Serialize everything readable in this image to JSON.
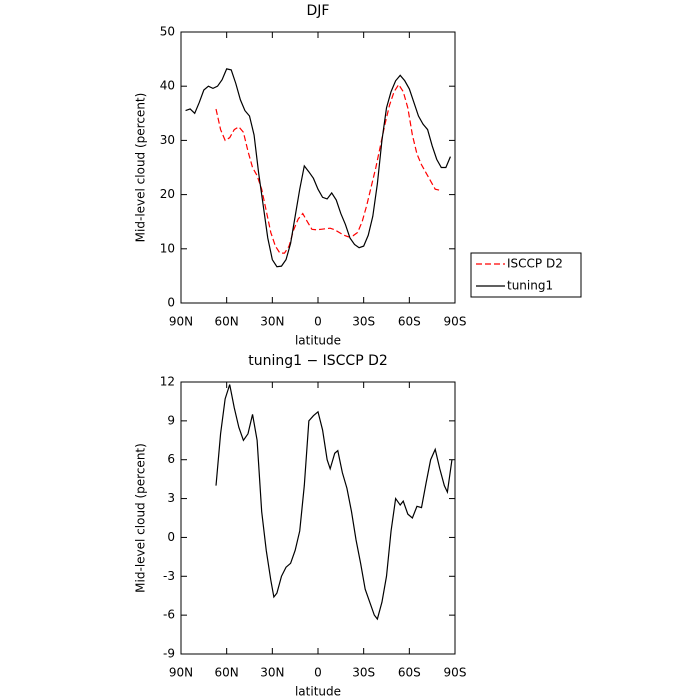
{
  "chart_data": [
    {
      "type": "line",
      "title": "DJF",
      "xlabel": "latitude",
      "ylabel": "Mid-level cloud (percent)",
      "xlim": [
        90,
        -90
      ],
      "xticks": [
        {
          "value": 90,
          "label": "90N"
        },
        {
          "value": 60,
          "label": "60N"
        },
        {
          "value": 30,
          "label": "30N"
        },
        0,
        {
          "value": -30,
          "label": "30S"
        },
        {
          "value": -60,
          "label": "60S"
        },
        {
          "value": -90,
          "label": "90S"
        }
      ],
      "ylim": [
        0,
        50
      ],
      "yticks": [
        0,
        10,
        20,
        30,
        40,
        50
      ],
      "legend": "outside-right",
      "series": [
        {
          "name": "ISCCP D2",
          "color": "#ff0000",
          "line_style": "dashed",
          "x": [
            67,
            64,
            61,
            58,
            55,
            52,
            49,
            46,
            43,
            40,
            37,
            34,
            31,
            28,
            25,
            22,
            19,
            16,
            13,
            10,
            7,
            4,
            1,
            -2,
            -5,
            -8,
            -11,
            -14,
            -17,
            -20,
            -23,
            -26,
            -29,
            -32,
            -35,
            -38,
            -41,
            -44,
            -47,
            -50,
            -53,
            -56,
            -59,
            -62,
            -65,
            -68,
            -71,
            -74,
            -77,
            -80
          ],
          "values": [
            35.8,
            32,
            30,
            30.5,
            32,
            32.5,
            31.5,
            28,
            25,
            23.5,
            21,
            17,
            13,
            10.5,
            9.2,
            9.2,
            10.5,
            13.5,
            15.5,
            16.5,
            15,
            13.6,
            13.5,
            13.6,
            13.7,
            13.8,
            13.5,
            13,
            12.5,
            12.2,
            12.4,
            13,
            15,
            18,
            21.5,
            25,
            29,
            33,
            36.5,
            39,
            40.3,
            39,
            36,
            31,
            27.5,
            25.5,
            24,
            22.5,
            21,
            20.8
          ]
        },
        {
          "name": "tuning1",
          "color": "#000000",
          "line_style": "solid",
          "x": [
            87,
            84,
            81,
            78,
            75,
            72,
            69,
            66,
            63,
            60,
            57,
            54,
            51,
            48,
            45,
            42,
            39,
            36,
            33,
            30,
            27,
            24,
            21,
            18,
            15,
            12,
            9,
            6,
            3,
            0,
            -3,
            -6,
            -9,
            -12,
            -15,
            -18,
            -21,
            -24,
            -27,
            -30,
            -33,
            -36,
            -39,
            -42,
            -45,
            -48,
            -51,
            -54,
            -57,
            -60,
            -63,
            -66,
            -69,
            -72,
            -75,
            -78,
            -81,
            -84,
            -87
          ],
          "values": [
            35.5,
            35.8,
            35,
            37,
            39.3,
            40,
            39.6,
            40,
            41.2,
            43.2,
            43,
            40.5,
            37.5,
            35.5,
            34.5,
            31,
            24,
            18,
            12,
            8,
            6.7,
            6.8,
            8,
            11,
            16,
            21,
            25.3,
            24.2,
            23,
            21,
            19.5,
            19.2,
            20.3,
            19,
            16.5,
            14.5,
            12,
            10.8,
            10.2,
            10.5,
            12.5,
            16,
            22,
            30,
            36,
            39,
            41,
            42,
            41,
            39.5,
            37,
            34.5,
            33,
            32,
            29,
            26.5,
            25,
            25,
            27
          ]
        }
      ]
    },
    {
      "type": "line",
      "title": "tuning1 − ISCCP D2",
      "xlabel": "latitude",
      "ylabel": "Mid-level cloud (percent)",
      "xlim": [
        90,
        -90
      ],
      "xticks": [
        {
          "value": 90,
          "label": "90N"
        },
        {
          "value": 60,
          "label": "60N"
        },
        {
          "value": 30,
          "label": "30N"
        },
        0,
        {
          "value": -30,
          "label": "30S"
        },
        {
          "value": -60,
          "label": "60S"
        },
        {
          "value": -90,
          "label": "90S"
        }
      ],
      "ylim": [
        -9,
        12
      ],
      "yticks": [
        -9,
        -6,
        -3,
        0,
        3,
        6,
        9,
        12
      ],
      "series": [
        {
          "color": "#000000",
          "line_style": "solid",
          "x": [
            67,
            64,
            61,
            58,
            55,
            52,
            49,
            46,
            43,
            40,
            37,
            34,
            31,
            29,
            27,
            24,
            21,
            18,
            15,
            12,
            9,
            6,
            3,
            0,
            -3,
            -6,
            -8,
            -11,
            -13,
            -16,
            -19,
            -22,
            -25,
            -28,
            -31,
            -34,
            -37,
            -39,
            -42,
            -45,
            -48,
            -51,
            -54,
            -56,
            -59,
            -62,
            -65,
            -68,
            -71,
            -74,
            -77,
            -80,
            -83,
            -85,
            -88
          ],
          "values": [
            4,
            8,
            10.7,
            11.8,
            10,
            8.5,
            7.5,
            8,
            9.5,
            7.5,
            2,
            -1,
            -3.3,
            -4.6,
            -4.3,
            -3,
            -2.3,
            -2,
            -1,
            0.5,
            4,
            9,
            9.4,
            9.7,
            8.3,
            6,
            5.3,
            6.5,
            6.7,
            5,
            3.8,
            2,
            -0.2,
            -2,
            -4,
            -5,
            -6,
            -6.3,
            -5,
            -3,
            0.5,
            3,
            2.5,
            2.8,
            1.8,
            1.5,
            2.4,
            2.3,
            4.2,
            6,
            6.8,
            5.3,
            4,
            3.5,
            6
          ]
        }
      ]
    }
  ]
}
